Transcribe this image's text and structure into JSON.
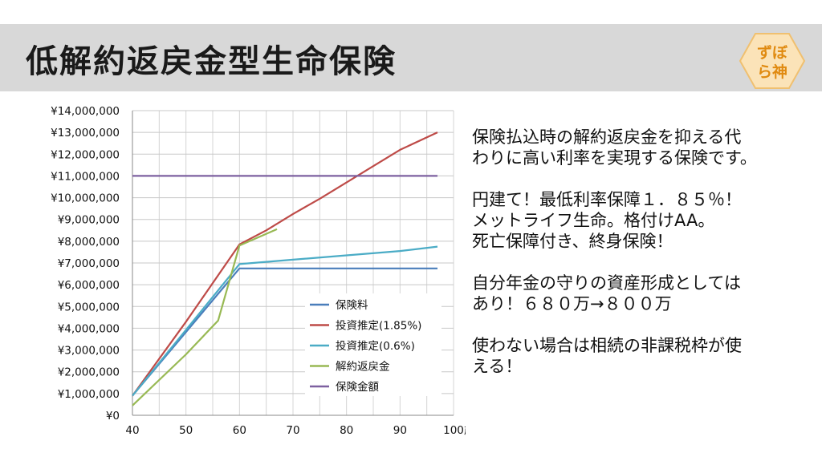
{
  "header": {
    "title": "低解約返戻金型生命保険",
    "logo_lines": [
      "ずぼ",
      "ら神"
    ]
  },
  "colors": {
    "header_bg": "#d8d8d8",
    "logo_bg": "#fbe3b8",
    "logo_text": "#e08a10",
    "grid": "#c8c8c8"
  },
  "chart_data": {
    "type": "line",
    "title": "",
    "xlabel": "歳",
    "ylabel": "",
    "xlim": [
      40,
      100
    ],
    "ylim": [
      0,
      14000000
    ],
    "x_ticks": [
      40,
      50,
      60,
      70,
      80,
      90,
      100
    ],
    "x_tick_labels": [
      "40",
      "50",
      "60",
      "70",
      "80",
      "90",
      "100"
    ],
    "y_ticks": [
      0,
      1000000,
      2000000,
      3000000,
      4000000,
      5000000,
      6000000,
      7000000,
      8000000,
      9000000,
      10000000,
      11000000,
      12000000,
      13000000,
      14000000
    ],
    "y_tick_labels": [
      "¥0",
      "¥1,000,000",
      "¥2,000,000",
      "¥3,000,000",
      "¥4,000,000",
      "¥5,000,000",
      "¥6,000,000",
      "¥7,000,000",
      "¥8,000,000",
      "¥9,000,000",
      "¥10,000,000",
      "¥11,000,000",
      "¥12,000,000",
      "¥13,000,000",
      "¥14,000,000"
    ],
    "legend_position": "bottom-right",
    "series": [
      {
        "name": "保険料",
        "color": "#4a7ebb",
        "x": [
          40,
          60,
          97
        ],
        "y": [
          900000,
          6750000,
          6750000
        ]
      },
      {
        "name": "投資推定(1.85%)",
        "color": "#be4b48",
        "x": [
          40,
          50,
          60,
          65,
          70,
          75,
          80,
          85,
          90,
          97
        ],
        "y": [
          900000,
          4300000,
          7850000,
          8500000,
          9250000,
          9950000,
          10700000,
          11450000,
          12200000,
          13000000
        ]
      },
      {
        "name": "投資推定(0.6%)",
        "color": "#4bacc6",
        "x": [
          40,
          60,
          70,
          80,
          90,
          97
        ],
        "y": [
          900000,
          6950000,
          7150000,
          7350000,
          7550000,
          7750000
        ]
      },
      {
        "name": "解約返戻金",
        "color": "#98b954",
        "x": [
          40,
          50,
          56,
          60,
          67
        ],
        "y": [
          450000,
          2800000,
          4350000,
          7800000,
          8550000
        ]
      },
      {
        "name": "保険金額",
        "color": "#7d60a0",
        "x": [
          40,
          97
        ],
        "y": [
          11000000,
          11000000
        ]
      }
    ]
  },
  "side_text": {
    "paragraphs": [
      "保険払込時の解約返戻金を抑える代\nわりに高い利率を実現する保険です。",
      "円建て！最低利率保障１．８５％！\nメットライフ生命。格付けAA。\n死亡保障付き、終身保険！",
      "自分年金の守りの資産形成としては\nあり！６８０万→８００万",
      "使わない場合は相続の非課税枠が使\nえる！"
    ]
  }
}
